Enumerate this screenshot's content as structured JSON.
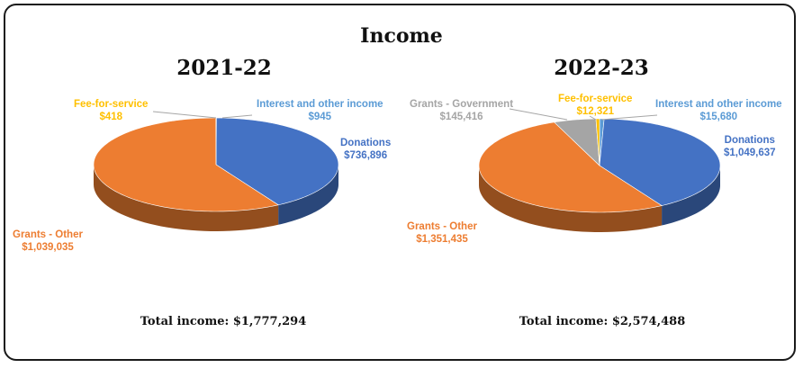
{
  "title": "Income",
  "colors": {
    "Donations": "#4472C4",
    "Grants - Other": "#ED7D31",
    "Grants - Government": "#A5A5A5",
    "Fee-for-service": "#FFC000",
    "Interest and other income": "#5B9BD5"
  },
  "chart_data": [
    {
      "type": "pie",
      "title": "2021-22",
      "total_label": "Total income: $1,777,294",
      "slices": [
        {
          "name": "Interest and other income",
          "value": 945,
          "label": "$945"
        },
        {
          "name": "Donations",
          "value": 736896,
          "label": "$736,896"
        },
        {
          "name": "Grants - Other",
          "value": 1039035,
          "label": "$1,039,035"
        },
        {
          "name": "Fee-for-service",
          "value": 418,
          "label": "$418"
        }
      ]
    },
    {
      "type": "pie",
      "title": "2022-23",
      "total_label": "Total income: $2,574,488",
      "slices": [
        {
          "name": "Interest and other income",
          "value": 15680,
          "label": "$15,680"
        },
        {
          "name": "Donations",
          "value": 1049637,
          "label": "$1,049,637"
        },
        {
          "name": "Grants - Other",
          "value": 1351435,
          "label": "$1,351,435"
        },
        {
          "name": "Grants - Government",
          "value": 145416,
          "label": "$145,416"
        },
        {
          "name": "Fee-for-service",
          "value": 12321,
          "label": "$12,321"
        }
      ]
    }
  ]
}
